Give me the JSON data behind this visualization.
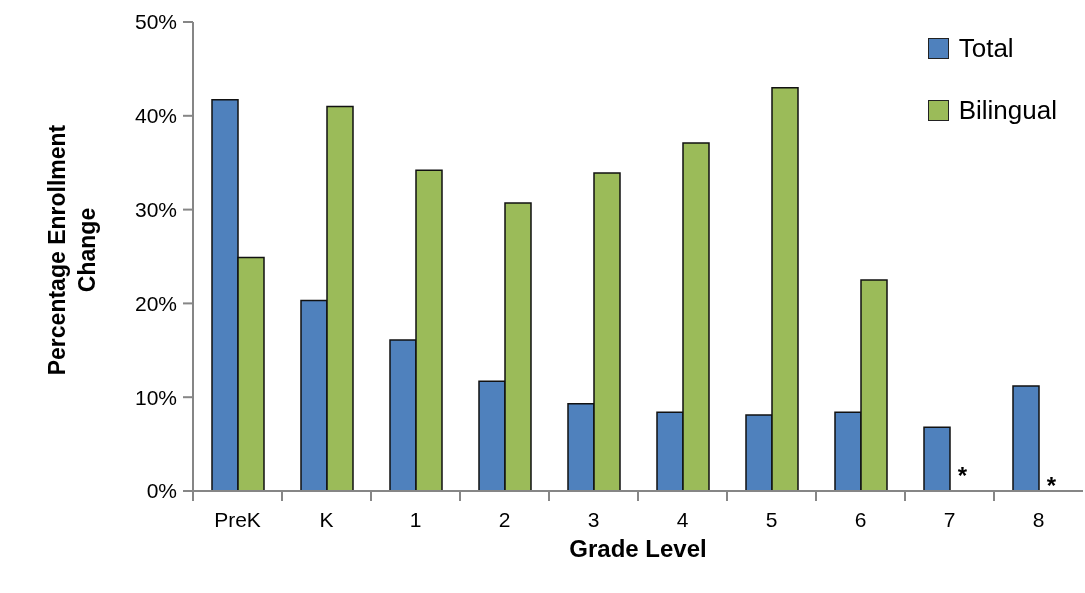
{
  "chart_data": {
    "type": "bar",
    "xlabel": "Grade Level",
    "ylabel": "Percentage Enrollment Change",
    "categories": [
      "PreK",
      "K",
      "1",
      "2",
      "3",
      "4",
      "5",
      "6",
      "7",
      "8"
    ],
    "series": [
      {
        "name": "Total",
        "color": "#4f81bd",
        "values": [
          41.7,
          20.3,
          16.1,
          11.7,
          9.3,
          8.4,
          8.1,
          8.4,
          6.8,
          11.2
        ]
      },
      {
        "name": "Bilingual",
        "color": "#9bbb59",
        "values": [
          24.9,
          41.0,
          34.2,
          30.7,
          33.9,
          37.1,
          43.0,
          22.5,
          null,
          null
        ]
      }
    ],
    "ylim": [
      0,
      50
    ],
    "yticks": [
      {
        "value": 0,
        "label": "0%"
      },
      {
        "value": 10,
        "label": "10%"
      },
      {
        "value": 20,
        "label": "20%"
      },
      {
        "value": 30,
        "label": "30%"
      },
      {
        "value": 40,
        "label": "40%"
      },
      {
        "value": 50,
        "label": "50%"
      }
    ],
    "legend": "top right",
    "annotations": [
      {
        "text": "*",
        "x": "7",
        "y": 2
      },
      {
        "text": "*",
        "x": "8",
        "y": 1
      }
    ]
  }
}
